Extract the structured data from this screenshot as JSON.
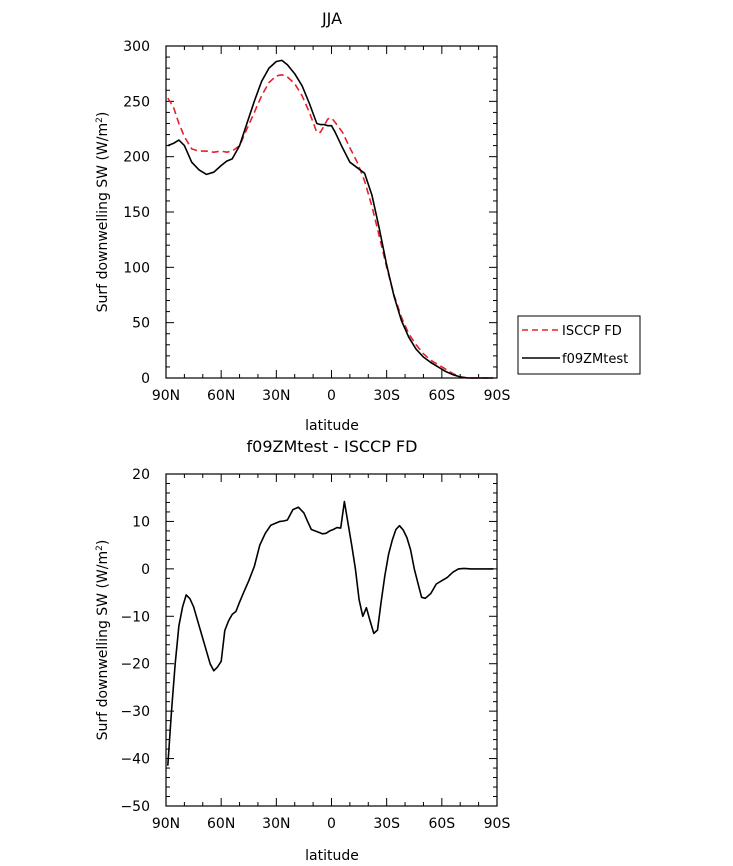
{
  "chart_data": [
    {
      "type": "line",
      "title": "JJA",
      "xlabel": "latitude",
      "ylabel": "Surf downwelling SW (W/m²)",
      "ylim": [
        0,
        300
      ],
      "xlim": [
        90,
        -90
      ],
      "x_tick_values": [
        90,
        60,
        30,
        0,
        -30,
        -60,
        -90
      ],
      "x_tick_labels": [
        "90N",
        "60N",
        "30N",
        "0",
        "30S",
        "60S",
        "90S"
      ],
      "y_tick_values": [
        0,
        50,
        100,
        150,
        200,
        250,
        300
      ],
      "y_tick_labels": [
        "0",
        "50",
        "100",
        "150",
        "200",
        "250",
        "300"
      ],
      "grid": false,
      "legend_position": "outside-right",
      "series": [
        {
          "name": "ISCCP FD",
          "color": "#e8202a",
          "dash": "dashed",
          "x": [
            89,
            86,
            83,
            80,
            76,
            72,
            68,
            64,
            60,
            57,
            54,
            50,
            46,
            42,
            38,
            34,
            30,
            27,
            24,
            20,
            16,
            12,
            8,
            6,
            4,
            2,
            0,
            -2,
            -6,
            -10,
            -14,
            -18,
            -22,
            -26,
            -30,
            -34,
            -38,
            -42,
            -46,
            -50,
            -54,
            -58,
            -62,
            -66,
            -70,
            -74,
            -76,
            -78,
            -80,
            -84,
            -88
          ],
          "y": [
            253,
            245,
            230,
            218,
            207,
            205,
            205,
            204,
            205,
            204,
            205,
            210,
            225,
            240,
            255,
            267,
            273,
            274,
            272,
            266,
            255,
            240,
            222,
            222,
            228,
            234,
            235,
            231,
            222,
            208,
            195,
            178,
            155,
            128,
            100,
            75,
            55,
            40,
            30,
            22,
            16,
            12,
            8,
            4,
            1,
            0,
            0,
            0,
            0,
            0,
            0
          ]
        },
        {
          "name": "f09ZMtest",
          "color": "#000000",
          "dash": "solid",
          "x": [
            89,
            86,
            83,
            80,
            76,
            72,
            68,
            64,
            60,
            57,
            54,
            50,
            46,
            42,
            38,
            34,
            30,
            27,
            24,
            20,
            16,
            12,
            8,
            6,
            4,
            2,
            0,
            -2,
            -6,
            -10,
            -14,
            -18,
            -22,
            -26,
            -30,
            -34,
            -38,
            -42,
            -46,
            -50,
            -54,
            -58,
            -62,
            -66,
            -70,
            -74,
            -76,
            -78,
            -80,
            -84,
            -88
          ],
          "y": [
            210,
            212,
            215,
            210,
            195,
            188,
            184,
            186,
            192,
            196,
            198,
            210,
            230,
            250,
            268,
            280,
            286,
            287,
            283,
            275,
            264,
            248,
            230,
            229,
            229,
            228,
            228,
            222,
            208,
            195,
            190,
            185,
            165,
            135,
            102,
            74,
            52,
            37,
            26,
            19,
            14,
            10,
            6,
            3,
            1,
            0,
            0,
            0,
            0,
            0,
            0
          ]
        }
      ]
    },
    {
      "type": "line",
      "title": "f09ZMtest - ISCCP FD",
      "xlabel": "latitude",
      "ylabel": "Surf downwelling SW (W/m²)",
      "ylim": [
        -50,
        20
      ],
      "xlim": [
        90,
        -90
      ],
      "x_tick_values": [
        90,
        60,
        30,
        0,
        -30,
        -60,
        -90
      ],
      "x_tick_labels": [
        "90N",
        "60N",
        "30N",
        "0",
        "30S",
        "60S",
        "90S"
      ],
      "y_tick_values": [
        -50,
        -40,
        -30,
        -20,
        -10,
        0,
        10,
        20
      ],
      "y_tick_labels": [
        "−50",
        "−40",
        "−30",
        "−20",
        "−10",
        "0",
        "10",
        "20"
      ],
      "grid": false,
      "series": [
        {
          "color": "#000000",
          "dash": "solid",
          "x": [
            89,
            87,
            85,
            83,
            81,
            79,
            77,
            75,
            72,
            69,
            66,
            64,
            62,
            60,
            58,
            56,
            54,
            52,
            50,
            48,
            45,
            42,
            39,
            36,
            33,
            30,
            28,
            26,
            24,
            21,
            18,
            15,
            13,
            11,
            9,
            7,
            5,
            3,
            1,
            -1,
            -3,
            -5,
            -7,
            -9,
            -11,
            -13,
            -15,
            -17,
            -19,
            -21,
            -23,
            -25,
            -27,
            -29,
            -31,
            -33,
            -35,
            -37,
            -39,
            -41,
            -43,
            -45,
            -47,
            -49,
            -51,
            -54,
            -57,
            -60,
            -63,
            -66,
            -69,
            -72,
            -76,
            -80,
            -84,
            -88
          ],
          "y": [
            -41.5,
            -30,
            -20,
            -12,
            -8,
            -5.5,
            -6.3,
            -8,
            -12,
            -16,
            -20,
            -21.5,
            -20.7,
            -19.5,
            -13,
            -11,
            -9.6,
            -9,
            -7,
            -5.2,
            -2.5,
            0.5,
            5,
            7.5,
            9.2,
            9.7,
            10,
            10.1,
            10.3,
            12.5,
            13,
            11.8,
            10,
            8.3,
            8,
            7.7,
            7.4,
            7.5,
            8,
            8.3,
            8.7,
            8.6,
            14.2,
            9.5,
            5,
            0,
            -6.5,
            -10,
            -8.2,
            -11,
            -13.6,
            -12.9,
            -7,
            -1.5,
            3,
            6,
            8.3,
            9.1,
            8.2,
            6.6,
            4,
            0,
            -3,
            -6,
            -6.2,
            -5.2,
            -3.2,
            -2.5,
            -1.8,
            -0.7,
            0,
            0.1,
            0,
            0,
            0,
            0
          ]
        }
      ]
    }
  ],
  "legend": {
    "items": [
      {
        "label": "ISCCP FD"
      },
      {
        "label": "f09ZMtest"
      }
    ]
  }
}
